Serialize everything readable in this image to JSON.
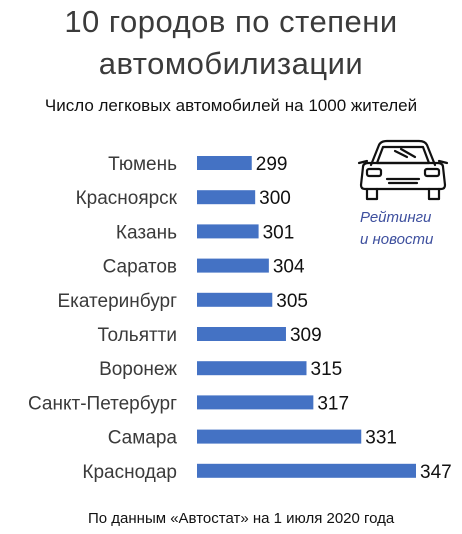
{
  "chart_data": {
    "type": "bar",
    "orientation": "horizontal",
    "title_line1": "10 городов по степени",
    "title_line2": "автомобилизации",
    "subtitle": "Число легковых автомобилей на 1000 жителей",
    "categories": [
      "Тюмень",
      "Красноярск",
      "Казань",
      "Саратов",
      "Екатеринбург",
      "Тольятти",
      "Воронеж",
      "Санкт-Петербург",
      "Самара",
      "Краснодар"
    ],
    "values": [
      299,
      300,
      301,
      304,
      305,
      309,
      315,
      317,
      331,
      347
    ],
    "xlim": [
      283,
      347
    ],
    "bar_color": "#4472c4",
    "grid": false,
    "legend": "none"
  },
  "watermark": {
    "line1": "Рейтинги",
    "line2": "и новости",
    "icon": "car-icon"
  },
  "footer": "По данным «Автостат» на 1 июля 2020 года"
}
